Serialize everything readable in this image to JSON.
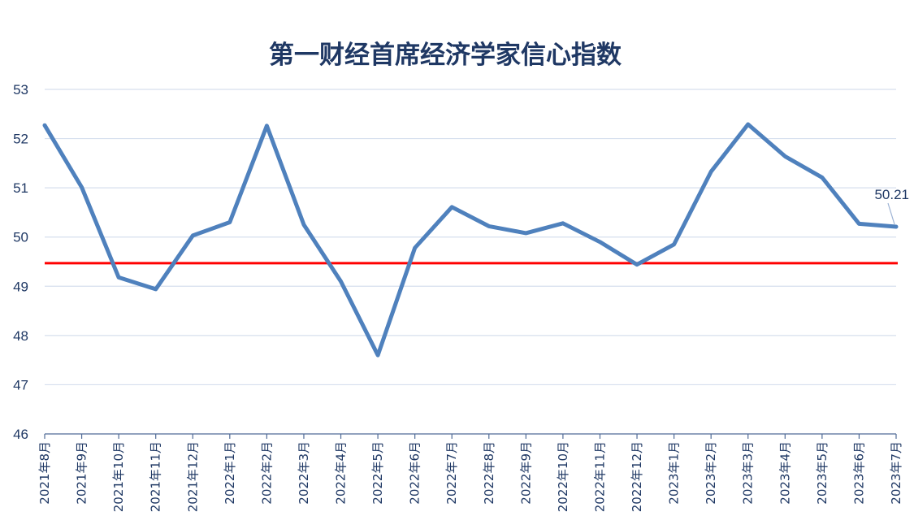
{
  "chart_data": {
    "type": "line",
    "title": "第一财经首席经济学家信心指数",
    "xlabel": "",
    "ylabel": "",
    "ylim": [
      46,
      53
    ],
    "yticks": [
      46,
      47,
      48,
      49,
      50,
      51,
      52,
      53
    ],
    "grid": "horizontal",
    "categories": [
      "2021年8月",
      "2021年9月",
      "2021年10月",
      "2021年11月",
      "2021年12月",
      "2022年1月",
      "2022年2月",
      "2022年3月",
      "2022年4月",
      "2022年5月",
      "2022年6月",
      "2022年7月",
      "2022年8月",
      "2022年9月",
      "2022年10月",
      "2022年11月",
      "2022年12月",
      "2023年1月",
      "2023年2月",
      "2023年3月",
      "2023年4月",
      "2023年5月",
      "2023年6月",
      "2023年7月"
    ],
    "series": [
      {
        "name": "",
        "color": "#4F81BD",
        "values": [
          52.27,
          51.01,
          49.18,
          48.94,
          50.03,
          50.3,
          52.26,
          50.25,
          49.1,
          47.6,
          49.78,
          50.61,
          50.22,
          50.08,
          50.28,
          49.9,
          49.44,
          49.85,
          51.33,
          52.29,
          51.64,
          51.21,
          50.27,
          50.21
        ]
      }
    ],
    "reference_line": {
      "value": 49.47,
      "color": "#FF0000"
    },
    "annotation": {
      "text": "50.21",
      "index": 23
    }
  }
}
